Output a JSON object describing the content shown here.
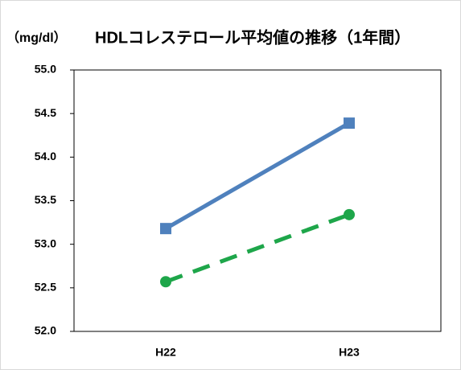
{
  "chart_data": {
    "type": "line",
    "title": "HDLコレステロール平均値の推移（1年間）",
    "unit_label": "（mg/dl）",
    "categories": [
      "H22",
      "H23"
    ],
    "series": [
      {
        "color": "#4f81bd",
        "marker": "square",
        "dash": false,
        "values": [
          53.18,
          54.39
        ]
      },
      {
        "color": "#1ea64a",
        "marker": "circle",
        "dash": true,
        "values": [
          52.57,
          53.34
        ]
      }
    ],
    "ylim": [
      52,
      55
    ],
    "yticks": [
      {
        "value": 52,
        "label": "52.0"
      },
      52.5,
      {
        "value": 53,
        "label": "53.0"
      },
      53.5,
      {
        "value": 54,
        "label": "54.0"
      },
      54.5,
      {
        "value": 55,
        "label": "55.0"
      }
    ],
    "grid": false
  }
}
